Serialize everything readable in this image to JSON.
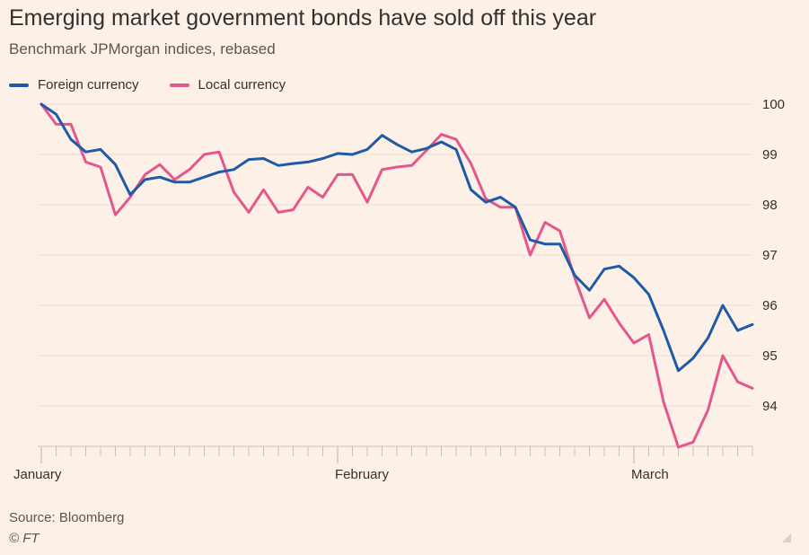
{
  "chart_data": {
    "type": "line",
    "title": "Emerging market government bonds have sold off this year",
    "subtitle": "Benchmark JPMorgan indices, rebased",
    "source": "Source: Bloomberg",
    "credit": "© FT",
    "x_month_labels": [
      "January",
      "February",
      "March"
    ],
    "ylim": [
      93,
      100
    ],
    "yticks": [
      100,
      99,
      98,
      97,
      96,
      95,
      94
    ],
    "y_axis_side": "right",
    "grid": true,
    "legend_position": "top-left",
    "series": [
      {
        "name": "Foreign currency",
        "color": "#1f5aa6",
        "values": [
          100.0,
          99.8,
          99.3,
          99.05,
          99.1,
          98.8,
          98.2,
          98.5,
          98.55,
          98.45,
          98.45,
          98.55,
          98.65,
          98.7,
          98.9,
          98.92,
          98.78,
          98.82,
          98.85,
          98.92,
          99.02,
          99.0,
          99.1,
          99.38,
          99.2,
          99.05,
          99.12,
          99.25,
          99.1,
          98.3,
          98.05,
          98.15,
          97.95,
          97.3,
          97.22,
          97.22,
          96.6,
          96.3,
          96.72,
          96.78,
          96.55,
          96.22,
          95.5,
          94.7,
          94.95,
          95.35,
          96.0,
          95.5,
          95.62
        ]
      },
      {
        "name": "Local currency",
        "color": "#e5578c",
        "values": [
          100.0,
          99.6,
          99.6,
          98.85,
          98.75,
          97.8,
          98.15,
          98.6,
          98.8,
          98.5,
          98.7,
          99.0,
          99.05,
          98.25,
          97.85,
          98.3,
          97.85,
          97.9,
          98.35,
          98.15,
          98.6,
          98.6,
          98.05,
          98.7,
          98.75,
          98.78,
          99.08,
          99.4,
          99.3,
          98.82,
          98.12,
          97.95,
          97.95,
          97.0,
          97.65,
          97.48,
          96.55,
          95.75,
          96.12,
          95.65,
          95.25,
          95.42,
          94.08,
          93.18,
          93.28,
          93.92,
          95.0,
          94.48,
          94.35
        ]
      }
    ]
  }
}
